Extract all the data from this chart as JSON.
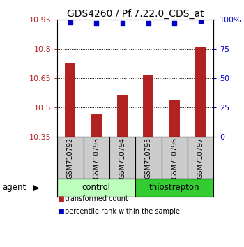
{
  "title": "GDS4260 / Pf.7.22.0_CDS_at",
  "categories": [
    "GSM710792",
    "GSM710793",
    "GSM710794",
    "GSM710795",
    "GSM710796",
    "GSM710797"
  ],
  "bar_values": [
    10.73,
    10.465,
    10.565,
    10.67,
    10.54,
    10.81
  ],
  "bar_bottom": 10.35,
  "percentile_values": [
    98,
    97,
    97,
    97,
    97,
    99
  ],
  "ylim_left": [
    10.35,
    10.95
  ],
  "ylim_right": [
    0,
    100
  ],
  "yticks_left": [
    10.35,
    10.5,
    10.65,
    10.8,
    10.95
  ],
  "ytick_labels_left": [
    "10.35",
    "10.5",
    "10.65",
    "10.8",
    "10.95"
  ],
  "yticks_right": [
    0,
    25,
    50,
    75,
    100
  ],
  "ytick_labels_right": [
    "0",
    "25",
    "50",
    "75",
    "100%"
  ],
  "bar_color": "#B22222",
  "dot_color": "#0000CC",
  "control_group": [
    0,
    1,
    2
  ],
  "thiostrepton_group": [
    3,
    4,
    5
  ],
  "control_color": "#BBFFBB",
  "thiostrepton_color": "#33CC33",
  "xlabel_area_color": "#CCCCCC",
  "agent_label": "agent",
  "control_label": "control",
  "thiostrepton_label": "thiostrepton",
  "legend_bar_label": "transformed count",
  "legend_dot_label": "percentile rank within the sample",
  "title_fontsize": 10,
  "tick_fontsize": 8,
  "label_fontsize": 8.5
}
